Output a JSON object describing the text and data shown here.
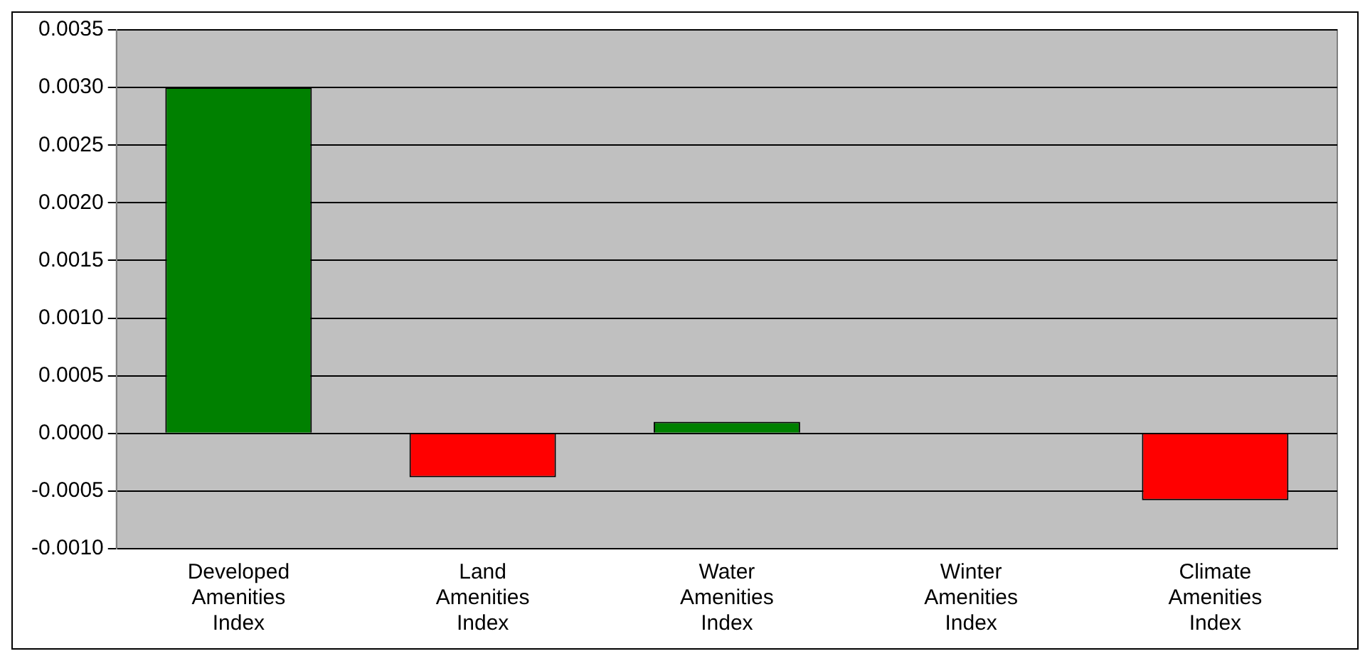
{
  "chart_data": {
    "type": "bar",
    "categories": [
      "Developed Amenities Index",
      "Land Amenities Index",
      "Water Amenities Index",
      "Winter Amenities Index",
      "Climate Amenities Index"
    ],
    "values": [
      0.003,
      -0.00038,
      0.0001,
      0,
      -0.00058
    ],
    "colors": [
      "#008000",
      "#ff0000",
      "#008000",
      "#008000",
      "#ff0000"
    ],
    "ylim": [
      -0.001,
      0.0035
    ],
    "yticks": [
      {
        "value": -0.001,
        "label": "-0.0010"
      },
      {
        "value": -0.0005,
        "label": "-0.0005"
      },
      {
        "value": 0,
        "label": "0.0000"
      },
      {
        "value": 0.0005,
        "label": "0.0005"
      },
      {
        "value": 0.001,
        "label": "0.0010"
      },
      {
        "value": 0.0015,
        "label": "0.0015"
      },
      {
        "value": 0.002,
        "label": "0.0020"
      },
      {
        "value": 0.0025,
        "label": "0.0025"
      },
      {
        "value": 0.003,
        "label": "0.0030"
      },
      {
        "value": 0.0035,
        "label": "0.0035"
      }
    ],
    "grid": "y",
    "legend": false
  }
}
